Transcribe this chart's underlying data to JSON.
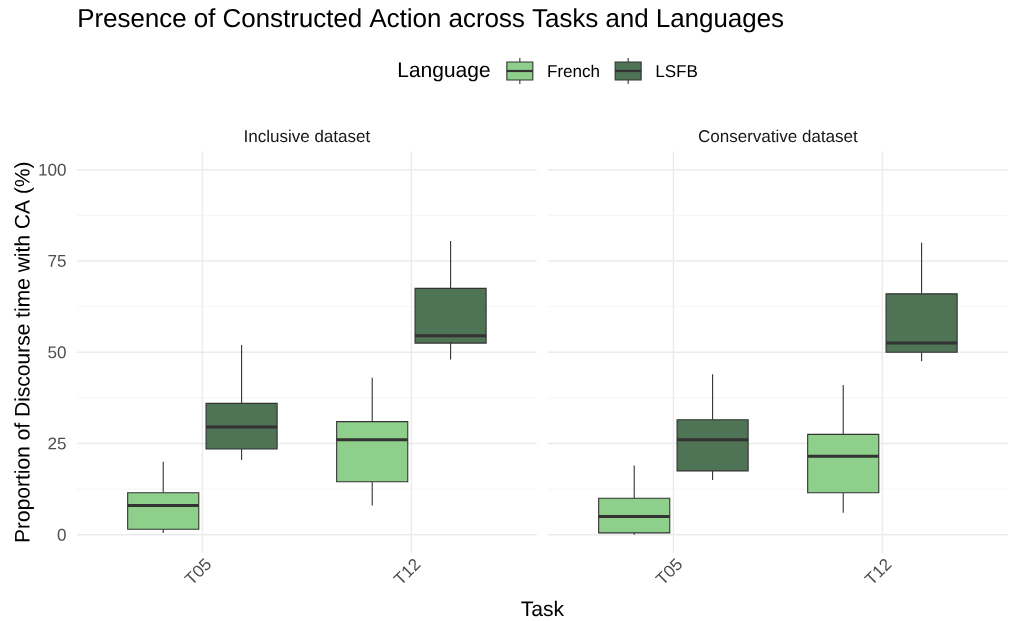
{
  "chart_data": [
    {
      "type": "box",
      "title": "Presence of Constructed Action across Tasks and Languages",
      "subtitle": "Inclusive dataset",
      "xlabel": "Task",
      "ylabel": "Proportion of Discourse time with CA (%)",
      "legend_title": "Language",
      "legend": "top",
      "grid": true,
      "categories": [
        "T05",
        "T12"
      ],
      "series": [
        {
          "name": "French",
          "color": "#8fcf8c",
          "boxes": [
            {
              "low": 0.5,
              "q1": 1.5,
              "median": 8,
              "q3": 11.5,
              "high": 20
            },
            {
              "low": 8,
              "q1": 14.5,
              "median": 26,
              "q3": 31,
              "high": 43
            }
          ]
        },
        {
          "name": "LSFB",
          "color": "#4e7355",
          "boxes": [
            {
              "low": 20.5,
              "q1": 23.5,
              "median": 29.5,
              "q3": 36,
              "high": 52
            },
            {
              "low": 48,
              "q1": 52.5,
              "median": 54.5,
              "q3": 67.5,
              "high": 80.5
            }
          ]
        }
      ],
      "ylim": [
        -5,
        105
      ],
      "yticks": [
        0,
        25,
        50,
        75,
        100
      ]
    },
    {
      "type": "box",
      "subtitle": "Conservative dataset",
      "grid": true,
      "tick_labels": "x",
      "categories": [
        "T05",
        "T12"
      ],
      "series": [
        {
          "color": "#8fcf8c",
          "boxes": [
            {
              "low": 0,
              "q1": 0.5,
              "median": 5,
              "q3": 10,
              "high": 19
            },
            {
              "low": 6,
              "q1": 11.5,
              "median": 21.5,
              "q3": 27.5,
              "high": 41
            }
          ]
        },
        {
          "color": "#4e7355",
          "boxes": [
            {
              "low": 15,
              "q1": 17.5,
              "median": 26,
              "q3": 31.5,
              "high": 44
            },
            {
              "low": 47.5,
              "q1": 50,
              "median": 52.5,
              "q3": 66,
              "high": 80
            }
          ]
        }
      ],
      "ylim": [
        -5,
        105
      ],
      "yticks": [
        0,
        25,
        50,
        75,
        100
      ]
    }
  ]
}
